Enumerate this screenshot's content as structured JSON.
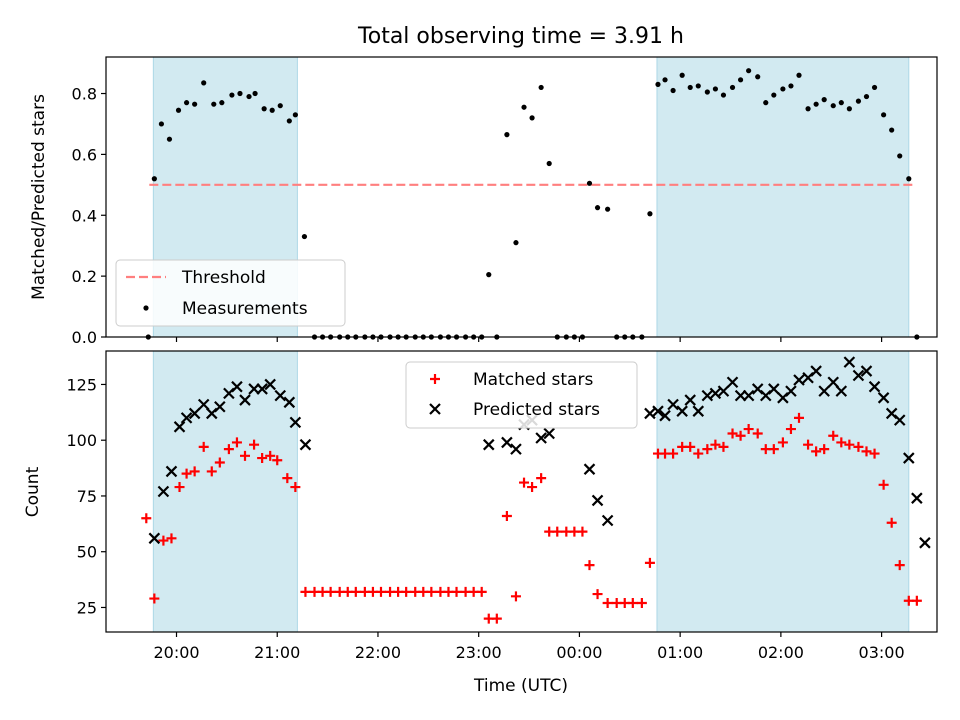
{
  "title": "Total observing time = 3.91 h",
  "colors": {
    "shade": "#add8e6",
    "threshold": "#ff7f7f",
    "measurements": "#000000",
    "matched": "#ff0000",
    "predicted": "#000000"
  },
  "chart_data": [
    {
      "type": "scatter",
      "ylabel": "Matched/Predicted stars",
      "ylim": [
        0,
        0.92
      ],
      "yticks": [
        0.0,
        0.2,
        0.4,
        0.6,
        0.8
      ],
      "ytick_labels": [
        "0.0",
        "0.2",
        "0.4",
        "0.6",
        "0.8"
      ],
      "xlim": [
        19.3,
        27.55
      ],
      "xticks": [
        20,
        21,
        22,
        23,
        24,
        25,
        26,
        27
      ],
      "xtick_labels": [
        "20:00",
        "21:00",
        "22:00",
        "23:00",
        "00:00",
        "01:00",
        "02:00",
        "03:00"
      ],
      "shaded_intervals": [
        [
          19.77,
          21.2
        ],
        [
          24.77,
          27.27
        ]
      ],
      "threshold": {
        "name": "Threshold",
        "y": 0.5,
        "x_range": [
          19.73,
          27.33
        ]
      },
      "legend": {
        "placement": "lower-left",
        "entries": [
          "Threshold",
          "Measurements"
        ]
      },
      "series": [
        {
          "name": "Measurements",
          "points": [
            [
              19.72,
              0.0
            ],
            [
              19.78,
              0.52
            ],
            [
              19.85,
              0.7
            ],
            [
              19.93,
              0.65
            ],
            [
              20.02,
              0.745
            ],
            [
              20.1,
              0.77
            ],
            [
              20.18,
              0.765
            ],
            [
              20.27,
              0.835
            ],
            [
              20.37,
              0.765
            ],
            [
              20.45,
              0.77
            ],
            [
              20.55,
              0.795
            ],
            [
              20.63,
              0.8
            ],
            [
              20.72,
              0.79
            ],
            [
              20.78,
              0.8
            ],
            [
              20.87,
              0.75
            ],
            [
              20.95,
              0.745
            ],
            [
              21.03,
              0.76
            ],
            [
              21.12,
              0.71
            ],
            [
              21.18,
              0.73
            ],
            [
              21.27,
              0.33
            ],
            [
              21.37,
              0.0
            ],
            [
              21.45,
              0.0
            ],
            [
              21.53,
              0.0
            ],
            [
              21.62,
              0.0
            ],
            [
              21.7,
              0.0
            ],
            [
              21.78,
              0.0
            ],
            [
              21.87,
              0.0
            ],
            [
              21.95,
              0.0
            ],
            [
              22.03,
              0.0
            ],
            [
              22.12,
              0.0
            ],
            [
              22.2,
              0.0
            ],
            [
              22.28,
              0.0
            ],
            [
              22.37,
              0.0
            ],
            [
              22.45,
              0.0
            ],
            [
              22.53,
              0.0
            ],
            [
              22.62,
              0.0
            ],
            [
              22.7,
              0.0
            ],
            [
              22.78,
              0.0
            ],
            [
              22.87,
              0.0
            ],
            [
              22.95,
              0.0
            ],
            [
              23.03,
              0.0
            ],
            [
              23.1,
              0.205
            ],
            [
              23.18,
              0.0
            ],
            [
              23.28,
              0.665
            ],
            [
              23.37,
              0.31
            ],
            [
              23.45,
              0.755
            ],
            [
              23.53,
              0.72
            ],
            [
              23.62,
              0.82
            ],
            [
              23.7,
              0.57
            ],
            [
              23.78,
              0.0
            ],
            [
              23.87,
              0.0
            ],
            [
              23.95,
              0.0
            ],
            [
              24.03,
              0.0
            ],
            [
              24.1,
              0.505
            ],
            [
              24.18,
              0.425
            ],
            [
              24.28,
              0.42
            ],
            [
              24.37,
              0.0
            ],
            [
              24.45,
              0.0
            ],
            [
              24.53,
              0.0
            ],
            [
              24.62,
              0.0
            ],
            [
              24.7,
              0.405
            ],
            [
              24.78,
              0.83
            ],
            [
              24.85,
              0.845
            ],
            [
              24.93,
              0.81
            ],
            [
              25.02,
              0.86
            ],
            [
              25.1,
              0.82
            ],
            [
              25.18,
              0.825
            ],
            [
              25.27,
              0.805
            ],
            [
              25.35,
              0.815
            ],
            [
              25.43,
              0.795
            ],
            [
              25.52,
              0.82
            ],
            [
              25.6,
              0.845
            ],
            [
              25.68,
              0.875
            ],
            [
              25.77,
              0.855
            ],
            [
              25.85,
              0.77
            ],
            [
              25.93,
              0.795
            ],
            [
              26.02,
              0.815
            ],
            [
              26.1,
              0.825
            ],
            [
              26.18,
              0.86
            ],
            [
              26.27,
              0.75
            ],
            [
              26.35,
              0.765
            ],
            [
              26.43,
              0.78
            ],
            [
              26.52,
              0.76
            ],
            [
              26.6,
              0.77
            ],
            [
              26.68,
              0.75
            ],
            [
              26.77,
              0.775
            ],
            [
              26.85,
              0.79
            ],
            [
              26.93,
              0.82
            ],
            [
              27.02,
              0.73
            ],
            [
              27.1,
              0.68
            ],
            [
              27.18,
              0.595
            ],
            [
              27.27,
              0.52
            ],
            [
              27.35,
              0.0
            ]
          ]
        }
      ]
    },
    {
      "type": "scatter",
      "xlabel": "Time (UTC)",
      "ylabel": "Count",
      "ylim": [
        14,
        140
      ],
      "yticks": [
        25,
        50,
        75,
        100,
        125
      ],
      "ytick_labels": [
        "25",
        "50",
        "75",
        "100",
        "125"
      ],
      "xlim": [
        19.3,
        27.55
      ],
      "xticks": [
        20,
        21,
        22,
        23,
        24,
        25,
        26,
        27
      ],
      "xtick_labels": [
        "20:00",
        "21:00",
        "22:00",
        "23:00",
        "00:00",
        "01:00",
        "02:00",
        "03:00"
      ],
      "shaded_intervals": [
        [
          19.77,
          21.2
        ],
        [
          24.77,
          27.27
        ]
      ],
      "legend": {
        "placement": "upper-center",
        "entries": [
          "Matched stars",
          "Predicted stars"
        ]
      },
      "series": [
        {
          "name": "Matched stars",
          "marker": "plus",
          "points": [
            [
              19.7,
              65
            ],
            [
              19.78,
              29
            ],
            [
              19.87,
              55
            ],
            [
              19.95,
              56
            ],
            [
              20.03,
              79
            ],
            [
              20.1,
              85
            ],
            [
              20.18,
              86
            ],
            [
              20.27,
              97
            ],
            [
              20.35,
              86
            ],
            [
              20.43,
              90
            ],
            [
              20.52,
              96
            ],
            [
              20.6,
              99
            ],
            [
              20.68,
              93
            ],
            [
              20.77,
              98
            ],
            [
              20.85,
              92
            ],
            [
              20.93,
              93
            ],
            [
              21.0,
              91
            ],
            [
              21.1,
              83
            ],
            [
              21.18,
              79
            ],
            [
              21.28,
              32
            ],
            [
              21.37,
              32
            ],
            [
              21.45,
              32
            ],
            [
              21.53,
              32
            ],
            [
              21.62,
              32
            ],
            [
              21.7,
              32
            ],
            [
              21.78,
              32
            ],
            [
              21.87,
              32
            ],
            [
              21.95,
              32
            ],
            [
              22.03,
              32
            ],
            [
              22.12,
              32
            ],
            [
              22.2,
              32
            ],
            [
              22.28,
              32
            ],
            [
              22.37,
              32
            ],
            [
              22.45,
              32
            ],
            [
              22.53,
              32
            ],
            [
              22.62,
              32
            ],
            [
              22.7,
              32
            ],
            [
              22.78,
              32
            ],
            [
              22.87,
              32
            ],
            [
              22.95,
              32
            ],
            [
              23.03,
              32
            ],
            [
              23.1,
              20
            ],
            [
              23.18,
              20
            ],
            [
              23.28,
              66
            ],
            [
              23.37,
              30
            ],
            [
              23.45,
              81
            ],
            [
              23.53,
              79
            ],
            [
              23.62,
              83
            ],
            [
              23.7,
              59
            ],
            [
              23.78,
              59
            ],
            [
              23.87,
              59
            ],
            [
              23.95,
              59
            ],
            [
              24.03,
              59
            ],
            [
              24.1,
              44
            ],
            [
              24.18,
              31
            ],
            [
              24.28,
              27
            ],
            [
              24.37,
              27
            ],
            [
              24.45,
              27
            ],
            [
              24.53,
              27
            ],
            [
              24.62,
              27
            ],
            [
              24.7,
              45
            ],
            [
              24.78,
              94
            ],
            [
              24.85,
              94
            ],
            [
              24.93,
              94
            ],
            [
              25.02,
              97
            ],
            [
              25.1,
              97
            ],
            [
              25.18,
              94
            ],
            [
              25.27,
              96
            ],
            [
              25.35,
              98
            ],
            [
              25.43,
              97
            ],
            [
              25.52,
              103
            ],
            [
              25.6,
              102
            ],
            [
              25.68,
              105
            ],
            [
              25.77,
              103
            ],
            [
              25.85,
              96
            ],
            [
              25.93,
              96
            ],
            [
              26.02,
              99
            ],
            [
              26.1,
              105
            ],
            [
              26.18,
              110
            ],
            [
              26.27,
              98
            ],
            [
              26.35,
              95
            ],
            [
              26.43,
              96
            ],
            [
              26.52,
              102
            ],
            [
              26.6,
              99
            ],
            [
              26.68,
              98
            ],
            [
              26.77,
              97
            ],
            [
              26.85,
              95
            ],
            [
              26.93,
              94
            ],
            [
              27.02,
              80
            ],
            [
              27.1,
              63
            ],
            [
              27.18,
              44
            ],
            [
              27.27,
              28
            ],
            [
              27.35,
              28
            ]
          ]
        },
        {
          "name": "Predicted stars",
          "marker": "x",
          "points": [
            [
              19.78,
              56
            ],
            [
              19.87,
              77
            ],
            [
              19.95,
              86
            ],
            [
              20.03,
              106
            ],
            [
              20.1,
              110
            ],
            [
              20.18,
              112
            ],
            [
              20.27,
              116
            ],
            [
              20.35,
              112
            ],
            [
              20.43,
              115
            ],
            [
              20.52,
              121
            ],
            [
              20.6,
              124
            ],
            [
              20.68,
              118
            ],
            [
              20.77,
              123
            ],
            [
              20.85,
              123
            ],
            [
              20.93,
              125
            ],
            [
              21.03,
              120
            ],
            [
              21.12,
              117
            ],
            [
              21.18,
              108
            ],
            [
              21.28,
              98
            ],
            [
              23.1,
              98
            ],
            [
              23.28,
              99
            ],
            [
              23.37,
              96
            ],
            [
              23.45,
              107
            ],
            [
              23.53,
              109
            ],
            [
              23.62,
              101
            ],
            [
              23.7,
              103
            ],
            [
              24.1,
              87
            ],
            [
              24.18,
              73
            ],
            [
              24.28,
              64
            ],
            [
              24.7,
              112
            ],
            [
              24.78,
              113
            ],
            [
              24.85,
              111
            ],
            [
              24.93,
              116
            ],
            [
              25.02,
              113
            ],
            [
              25.1,
              118
            ],
            [
              25.18,
              113
            ],
            [
              25.27,
              120
            ],
            [
              25.35,
              121
            ],
            [
              25.43,
              122
            ],
            [
              25.52,
              126
            ],
            [
              25.6,
              120
            ],
            [
              25.68,
              120
            ],
            [
              25.77,
              123
            ],
            [
              25.85,
              120
            ],
            [
              25.93,
              123
            ],
            [
              26.02,
              119
            ],
            [
              26.1,
              122
            ],
            [
              26.18,
              127
            ],
            [
              26.27,
              128
            ],
            [
              26.35,
              131
            ],
            [
              26.43,
              122
            ],
            [
              26.52,
              126
            ],
            [
              26.6,
              122
            ],
            [
              26.68,
              135
            ],
            [
              26.77,
              129
            ],
            [
              26.85,
              131
            ],
            [
              26.93,
              124
            ],
            [
              27.02,
              119
            ],
            [
              27.1,
              112
            ],
            [
              27.18,
              109
            ],
            [
              27.27,
              92
            ],
            [
              27.35,
              74
            ],
            [
              27.43,
              54
            ]
          ]
        }
      ]
    }
  ]
}
